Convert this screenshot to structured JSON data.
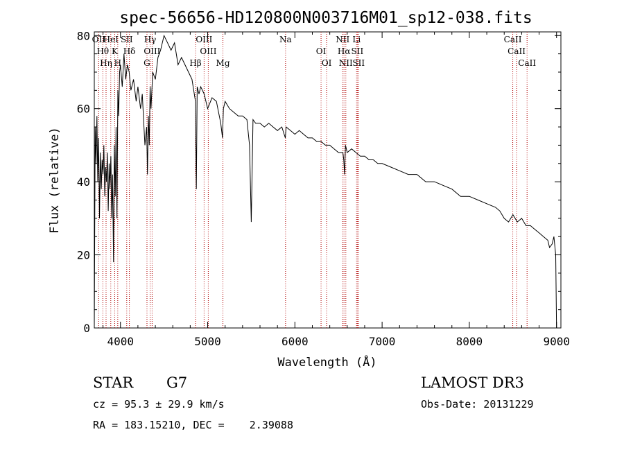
{
  "chart_data": {
    "type": "line",
    "title": "spec-56656-HD120800N003716M01_sp12-038.fits",
    "xlabel": "Wavelength (Å)",
    "ylabel": "Flux (relative)",
    "xlim": [
      3700,
      9050
    ],
    "ylim": [
      0,
      81
    ],
    "x_ticks": [
      4000,
      5000,
      6000,
      7000,
      8000,
      9000
    ],
    "y_ticks": [
      0,
      20,
      40,
      60,
      80
    ],
    "series": [
      {
        "name": "spectrum",
        "x": [
          3700,
          3710,
          3720,
          3730,
          3740,
          3750,
          3760,
          3770,
          3780,
          3790,
          3800,
          3810,
          3820,
          3830,
          3840,
          3850,
          3860,
          3870,
          3880,
          3890,
          3900,
          3910,
          3920,
          3930,
          3940,
          3950,
          3960,
          3970,
          3980,
          3990,
          4000,
          4020,
          4040,
          4060,
          4080,
          4100,
          4120,
          4150,
          4180,
          4200,
          4230,
          4250,
          4280,
          4300,
          4310,
          4320,
          4330,
          4340,
          4350,
          4370,
          4400,
          4430,
          4460,
          4500,
          4540,
          4580,
          4620,
          4660,
          4700,
          4740,
          4780,
          4820,
          4860,
          4870,
          4880,
          4900,
          4920,
          4960,
          5000,
          5050,
          5100,
          5150,
          5170,
          5180,
          5200,
          5250,
          5300,
          5350,
          5400,
          5450,
          5480,
          5500,
          5520,
          5550,
          5600,
          5650,
          5700,
          5750,
          5800,
          5850,
          5890,
          5900,
          5950,
          6000,
          6050,
          6100,
          6150,
          6200,
          6250,
          6300,
          6350,
          6400,
          6450,
          6500,
          6550,
          6560,
          6570,
          6580,
          6600,
          6650,
          6700,
          6750,
          6800,
          6850,
          6900,
          6950,
          7000,
          7100,
          7200,
          7300,
          7400,
          7500,
          7600,
          7700,
          7800,
          7900,
          8000,
          8100,
          8200,
          8300,
          8350,
          8400,
          8450,
          8500,
          8550,
          8600,
          8650,
          8700,
          8750,
          8800,
          8850,
          8900,
          8920,
          8950,
          8970,
          8990,
          9000
        ],
        "values": [
          0,
          55,
          45,
          58,
          40,
          52,
          30,
          48,
          38,
          46,
          42,
          50,
          36,
          44,
          40,
          48,
          32,
          45,
          38,
          47,
          30,
          42,
          18,
          50,
          36,
          55,
          30,
          65,
          58,
          70,
          72,
          66,
          75,
          68,
          72,
          70,
          65,
          68,
          62,
          66,
          60,
          64,
          50,
          55,
          42,
          58,
          50,
          66,
          60,
          70,
          68,
          74,
          76,
          80,
          78,
          76,
          78,
          72,
          74,
          72,
          70,
          68,
          62,
          38,
          66,
          64,
          66,
          64,
          60,
          63,
          62,
          56,
          52,
          60,
          62,
          60,
          59,
          58,
          58,
          57,
          50,
          29,
          57,
          56,
          56,
          55,
          56,
          55,
          54,
          55,
          52,
          55,
          54,
          53,
          54,
          53,
          52,
          52,
          51,
          51,
          50,
          50,
          49,
          48,
          48,
          46,
          42,
          50,
          48,
          49,
          48,
          47,
          47,
          46,
          46,
          45,
          45,
          44,
          43,
          42,
          42,
          40,
          40,
          39,
          38,
          36,
          36,
          35,
          34,
          33,
          32,
          30,
          29,
          31,
          29,
          30,
          28,
          28,
          27,
          26,
          25,
          24,
          22,
          23,
          25,
          20,
          0
        ]
      }
    ],
    "lines": [
      {
        "x": 3750,
        "label": "OII"
      },
      {
        "x": 3798,
        "label": "Hθ"
      },
      {
        "x": 3835,
        "label": "Hη"
      },
      {
        "x": 3889,
        "label": "HeI"
      },
      {
        "x": 3934,
        "label": "K"
      },
      {
        "x": 3969,
        "label": "H"
      },
      {
        "x": 4072,
        "label": "SII"
      },
      {
        "x": 4102,
        "label": "Hδ"
      },
      {
        "x": 4304,
        "label": "G"
      },
      {
        "x": 4340,
        "label": "Hγ"
      },
      {
        "x": 4363,
        "label": "OIII"
      },
      {
        "x": 4861,
        "label": "Hβ"
      },
      {
        "x": 4959,
        "label": "OIII"
      },
      {
        "x": 5007,
        "label": "OIII"
      },
      {
        "x": 5175,
        "label": "Mg"
      },
      {
        "x": 5893,
        "label": "Na"
      },
      {
        "x": 6300,
        "label": "OI"
      },
      {
        "x": 6364,
        "label": "OI"
      },
      {
        "x": 6548,
        "label": "NII"
      },
      {
        "x": 6563,
        "label": "Hα"
      },
      {
        "x": 6584,
        "label": "NII"
      },
      {
        "x": 6707,
        "label": "Li"
      },
      {
        "x": 6716,
        "label": "SII"
      },
      {
        "x": 6731,
        "label": "SII"
      },
      {
        "x": 8498,
        "label": "CaII"
      },
      {
        "x": 8542,
        "label": "CaII"
      },
      {
        "x": 8662,
        "label": "CaII"
      }
    ]
  },
  "info": {
    "class": "STAR",
    "subclass": "G7",
    "survey": "LAMOST DR3",
    "cz": "cz = 95.3 ± 29.9 km/s",
    "obs_date": "Obs-Date: 20131229",
    "coords": "RA = 183.15210, DEC =    2.39088"
  },
  "colors": {
    "line_marker": "#b00000",
    "spectrum": "#000000"
  }
}
